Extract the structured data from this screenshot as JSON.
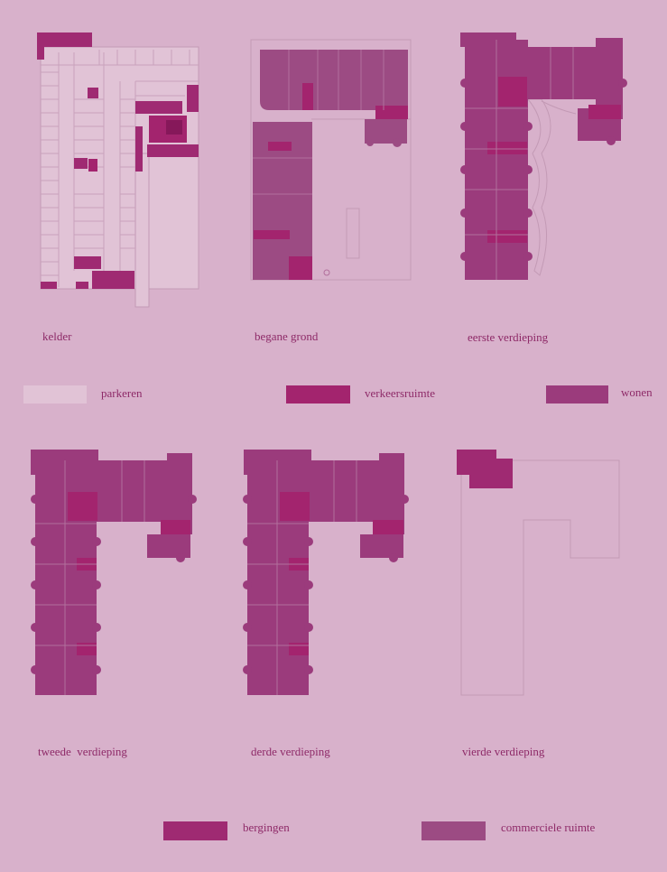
{
  "colors": {
    "background": "#d8b1cb",
    "parkeren": "#e1c3d6",
    "verkeersruimte": "#a3246e",
    "wonen": "#9b3b7c",
    "bergingen": "#9f2a72",
    "commerciele_ruimte": "#9c4b83",
    "outline": "#c39ab5"
  },
  "plans": {
    "kelder": "kelder",
    "begane_grond": "begane grond",
    "eerste_verdieping": "eerste verdieping",
    "tweede_verdieping": "tweede  verdieping",
    "derde_verdieping": "derde verdieping",
    "vierde_verdieping": "vierde verdieping"
  },
  "legend": {
    "parkeren": "parkeren",
    "verkeersruimte": "verkeersruimte",
    "wonen": "wonen",
    "bergingen": "bergingen",
    "commerciele_ruimte": "commerciele ruimte"
  }
}
